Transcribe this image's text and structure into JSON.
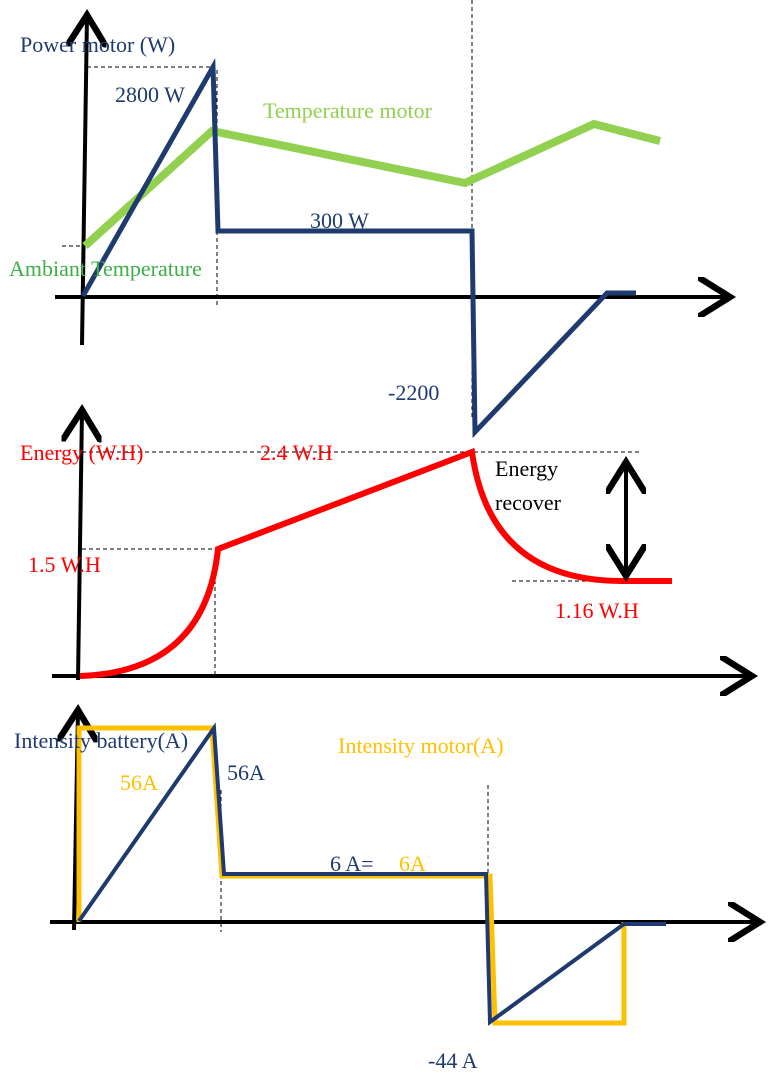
{
  "colors": {
    "navy": "#1f3a6e",
    "green_light": "#92d050",
    "green_dark": "#3fae49",
    "red": "#ff0000",
    "orange": "#ffc000",
    "black": "#000000"
  },
  "chart_data": [
    {
      "type": "line",
      "series": [
        {
          "name": "Power motor  (W)",
          "color": "#1f3a6e"
        },
        {
          "name": "Temperature motor",
          "color": "#92d050"
        }
      ],
      "labels": {
        "power_title": "Power motor  (W)",
        "temperature_title": "Temperature motor",
        "ambient": "Ambiant Temperature",
        "peak": "2800 W",
        "steady": "300 W",
        "regen": "-2200"
      },
      "power_points": [
        [
          0,
          0
        ],
        [
          2,
          2800
        ],
        [
          2.05,
          300
        ],
        [
          5.9,
          300
        ],
        [
          6,
          -2200
        ],
        [
          8,
          0
        ],
        [
          8.4,
          0
        ]
      ],
      "temperature_points": [
        [
          0,
          0.3
        ],
        [
          1.95,
          0.92
        ],
        [
          5.9,
          0.62
        ],
        [
          7.8,
          0.95
        ],
        [
          8.5,
          0.88
        ]
      ]
    },
    {
      "type": "line",
      "series": [
        {
          "name": "Energy (W.H)",
          "color": "#ff0000"
        }
      ],
      "labels": {
        "title": "Energy (W.H)",
        "peak": "2.4 W.H",
        "mid": "1.5 W.H",
        "final": "1.16 W.H",
        "recover_line1": "Energy",
        "recover_line2": "recover"
      },
      "energy_points": [
        [
          0,
          0
        ],
        [
          2,
          1.5
        ],
        [
          5.9,
          2.4
        ],
        [
          7.6,
          1.16
        ],
        [
          8.6,
          1.16
        ]
      ]
    },
    {
      "type": "line",
      "series": [
        {
          "name": "Intensity battery(A)",
          "color": "#1f3a6e"
        },
        {
          "name": "Intensity motor(A)",
          "color": "#ffc000"
        }
      ],
      "labels": {
        "battery_title": "Intensity battery(A)",
        "motor_title": "Intensity motor(A)",
        "motor_peak": "56A",
        "battery_peak": "56A",
        "steady_a": "6 A=",
        "steady_b": "6A",
        "regen": "-44 A"
      },
      "battery_points": [
        [
          0,
          0
        ],
        [
          2,
          56
        ],
        [
          2.1,
          6
        ],
        [
          6,
          6
        ],
        [
          6.1,
          -44
        ],
        [
          7.5,
          0
        ],
        [
          8.2,
          0
        ]
      ],
      "motor_points": [
        [
          0,
          0
        ],
        [
          0,
          56
        ],
        [
          2,
          56
        ],
        [
          2.1,
          6
        ],
        [
          6,
          6
        ],
        [
          6.1,
          -44
        ],
        [
          7.5,
          -44
        ],
        [
          7.5,
          0
        ]
      ]
    }
  ]
}
